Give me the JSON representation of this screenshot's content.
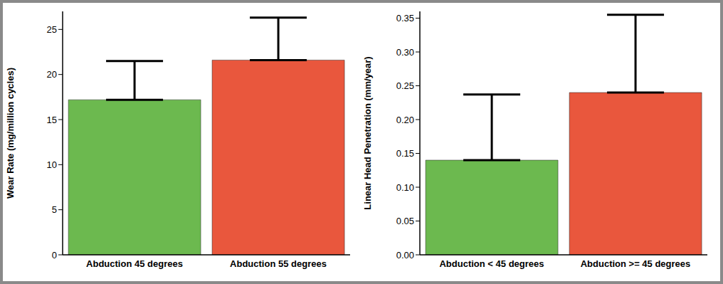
{
  "chart_data": [
    {
      "type": "bar",
      "ylabel": "Wear Rate (mg/million cycles)",
      "categories": [
        "Abduction 45 degrees",
        "Abduction 55 degrees"
      ],
      "values": [
        17.2,
        21.6
      ],
      "errors": [
        4.3,
        4.7
      ],
      "colors": [
        "#6cb94f",
        "#e9573d"
      ],
      "ylim": [
        0,
        27
      ],
      "yticks": [
        0,
        5,
        10,
        15,
        20,
        25
      ],
      "grid": false
    },
    {
      "type": "bar",
      "ylabel": "Linear Head Penetration (mm/year)",
      "categories": [
        "Abduction < 45 degrees",
        "Abduction >= 45 degrees"
      ],
      "values": [
        0.14,
        0.24
      ],
      "errors": [
        0.097,
        0.115
      ],
      "colors": [
        "#6cb94f",
        "#e9573d"
      ],
      "ylim": [
        0,
        0.36
      ],
      "yticks": [
        {
          "value": 0,
          "label": "0.00"
        },
        0.05,
        {
          "value": 0.1,
          "label": "0.10"
        },
        0.15,
        {
          "value": 0.2,
          "label": "0.20"
        },
        0.25,
        {
          "value": 0.3,
          "label": "0.30"
        },
        0.35
      ],
      "grid": false
    }
  ]
}
